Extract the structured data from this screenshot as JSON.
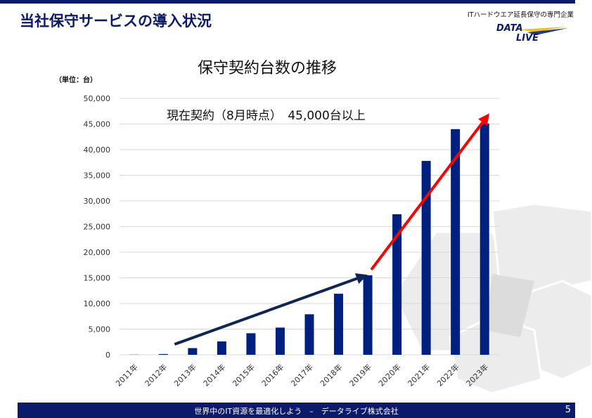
{
  "header": {
    "title": "当社保守サービスの導入状況",
    "tagline": "ITハードウエア延長保守の専門企業",
    "logo_text": "DATA LIVE"
  },
  "footer": {
    "text": "世界中のIT資源を最適化しよう　–　データライブ株式会社",
    "page": "5"
  },
  "colors": {
    "bar": "#00207f",
    "navy": "#0b1a6b",
    "red_arrow": "#ff0000",
    "dark_arrow": "#0e2556"
  },
  "chart_data": {
    "type": "bar",
    "title": "保守契約台数の推移",
    "unit_label": "（単位：台）",
    "annotation": "現在契約（8月時点）　45,000台以上",
    "categories": [
      "2011年",
      "2012年",
      "2013年",
      "2014年",
      "2015年",
      "2016年",
      "2017年",
      "2018年",
      "2019年",
      "2020年",
      "2021年",
      "2022年",
      "2023年"
    ],
    "values": [
      30,
      150,
      1300,
      2600,
      4200,
      5300,
      7900,
      11900,
      15500,
      27400,
      37800,
      44000,
      45100
    ],
    "ylim": [
      0,
      50000
    ],
    "yticks": [
      "0",
      "5,000",
      "10,000",
      "15,000",
      "20,000",
      "25,000",
      "30,000",
      "35,000",
      "40,000",
      "45,000",
      "50,000"
    ],
    "grid": true,
    "arrows": [
      {
        "from": "2012年",
        "to": "2019年",
        "color": "dark"
      },
      {
        "from": "2019年",
        "to": "2023年",
        "color": "red"
      }
    ]
  }
}
